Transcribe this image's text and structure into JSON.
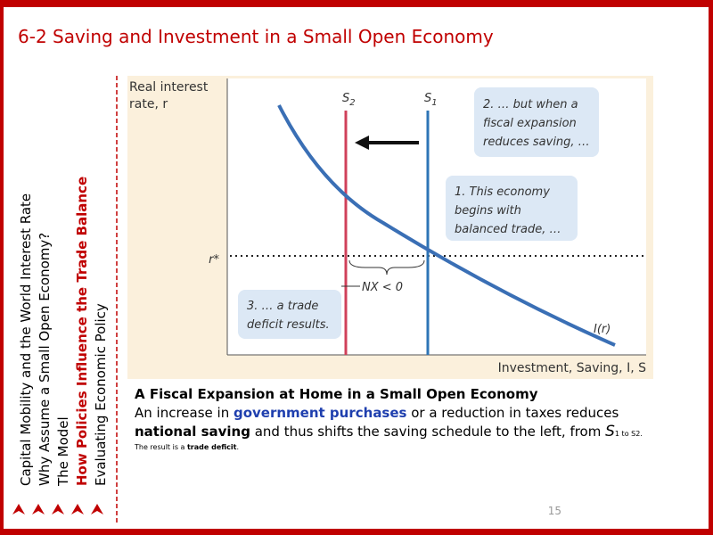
{
  "header": {
    "title": "6-2 Saving and Investment in a Small Open Economy"
  },
  "sidebar": {
    "items": [
      "Capital Mobility and the World Interest Rate",
      "Why Assume a Small Open Economy?",
      "The Model",
      "How Policies Influence the Trade Balance",
      "Evaluating Economic Policy"
    ]
  },
  "diagram": {
    "y_axis_label": [
      "Real interest",
      "rate, r"
    ],
    "x_axis_label": "Investment, Saving, I, S",
    "s2": {
      "letter": "S",
      "sub": "2"
    },
    "s1": {
      "letter": "S",
      "sub": "1"
    },
    "r_star": "r*",
    "nx": "NX < 0",
    "curve": "I(r)",
    "callouts": [
      [
        "2. … but when a",
        "fiscal expansion",
        "reduces saving, …"
      ],
      [
        "1. This economy",
        "begins with",
        "balanced trade, …"
      ],
      [
        "3. … a trade",
        "deficit results."
      ]
    ]
  },
  "caption": {
    "title": "A Fiscal Expansion at Home in a Small Open Economy",
    "body": [
      "An increase in ",
      "government purchases",
      " or a reduction in taxes reduces ",
      "national saving",
      " and thus shifts the saving schedule to the left, from ",
      "S",
      "1 to S2."
    ],
    "note": [
      "The result is a ",
      "trade deficit",
      "."
    ]
  },
  "footer": {
    "page": "15"
  }
}
